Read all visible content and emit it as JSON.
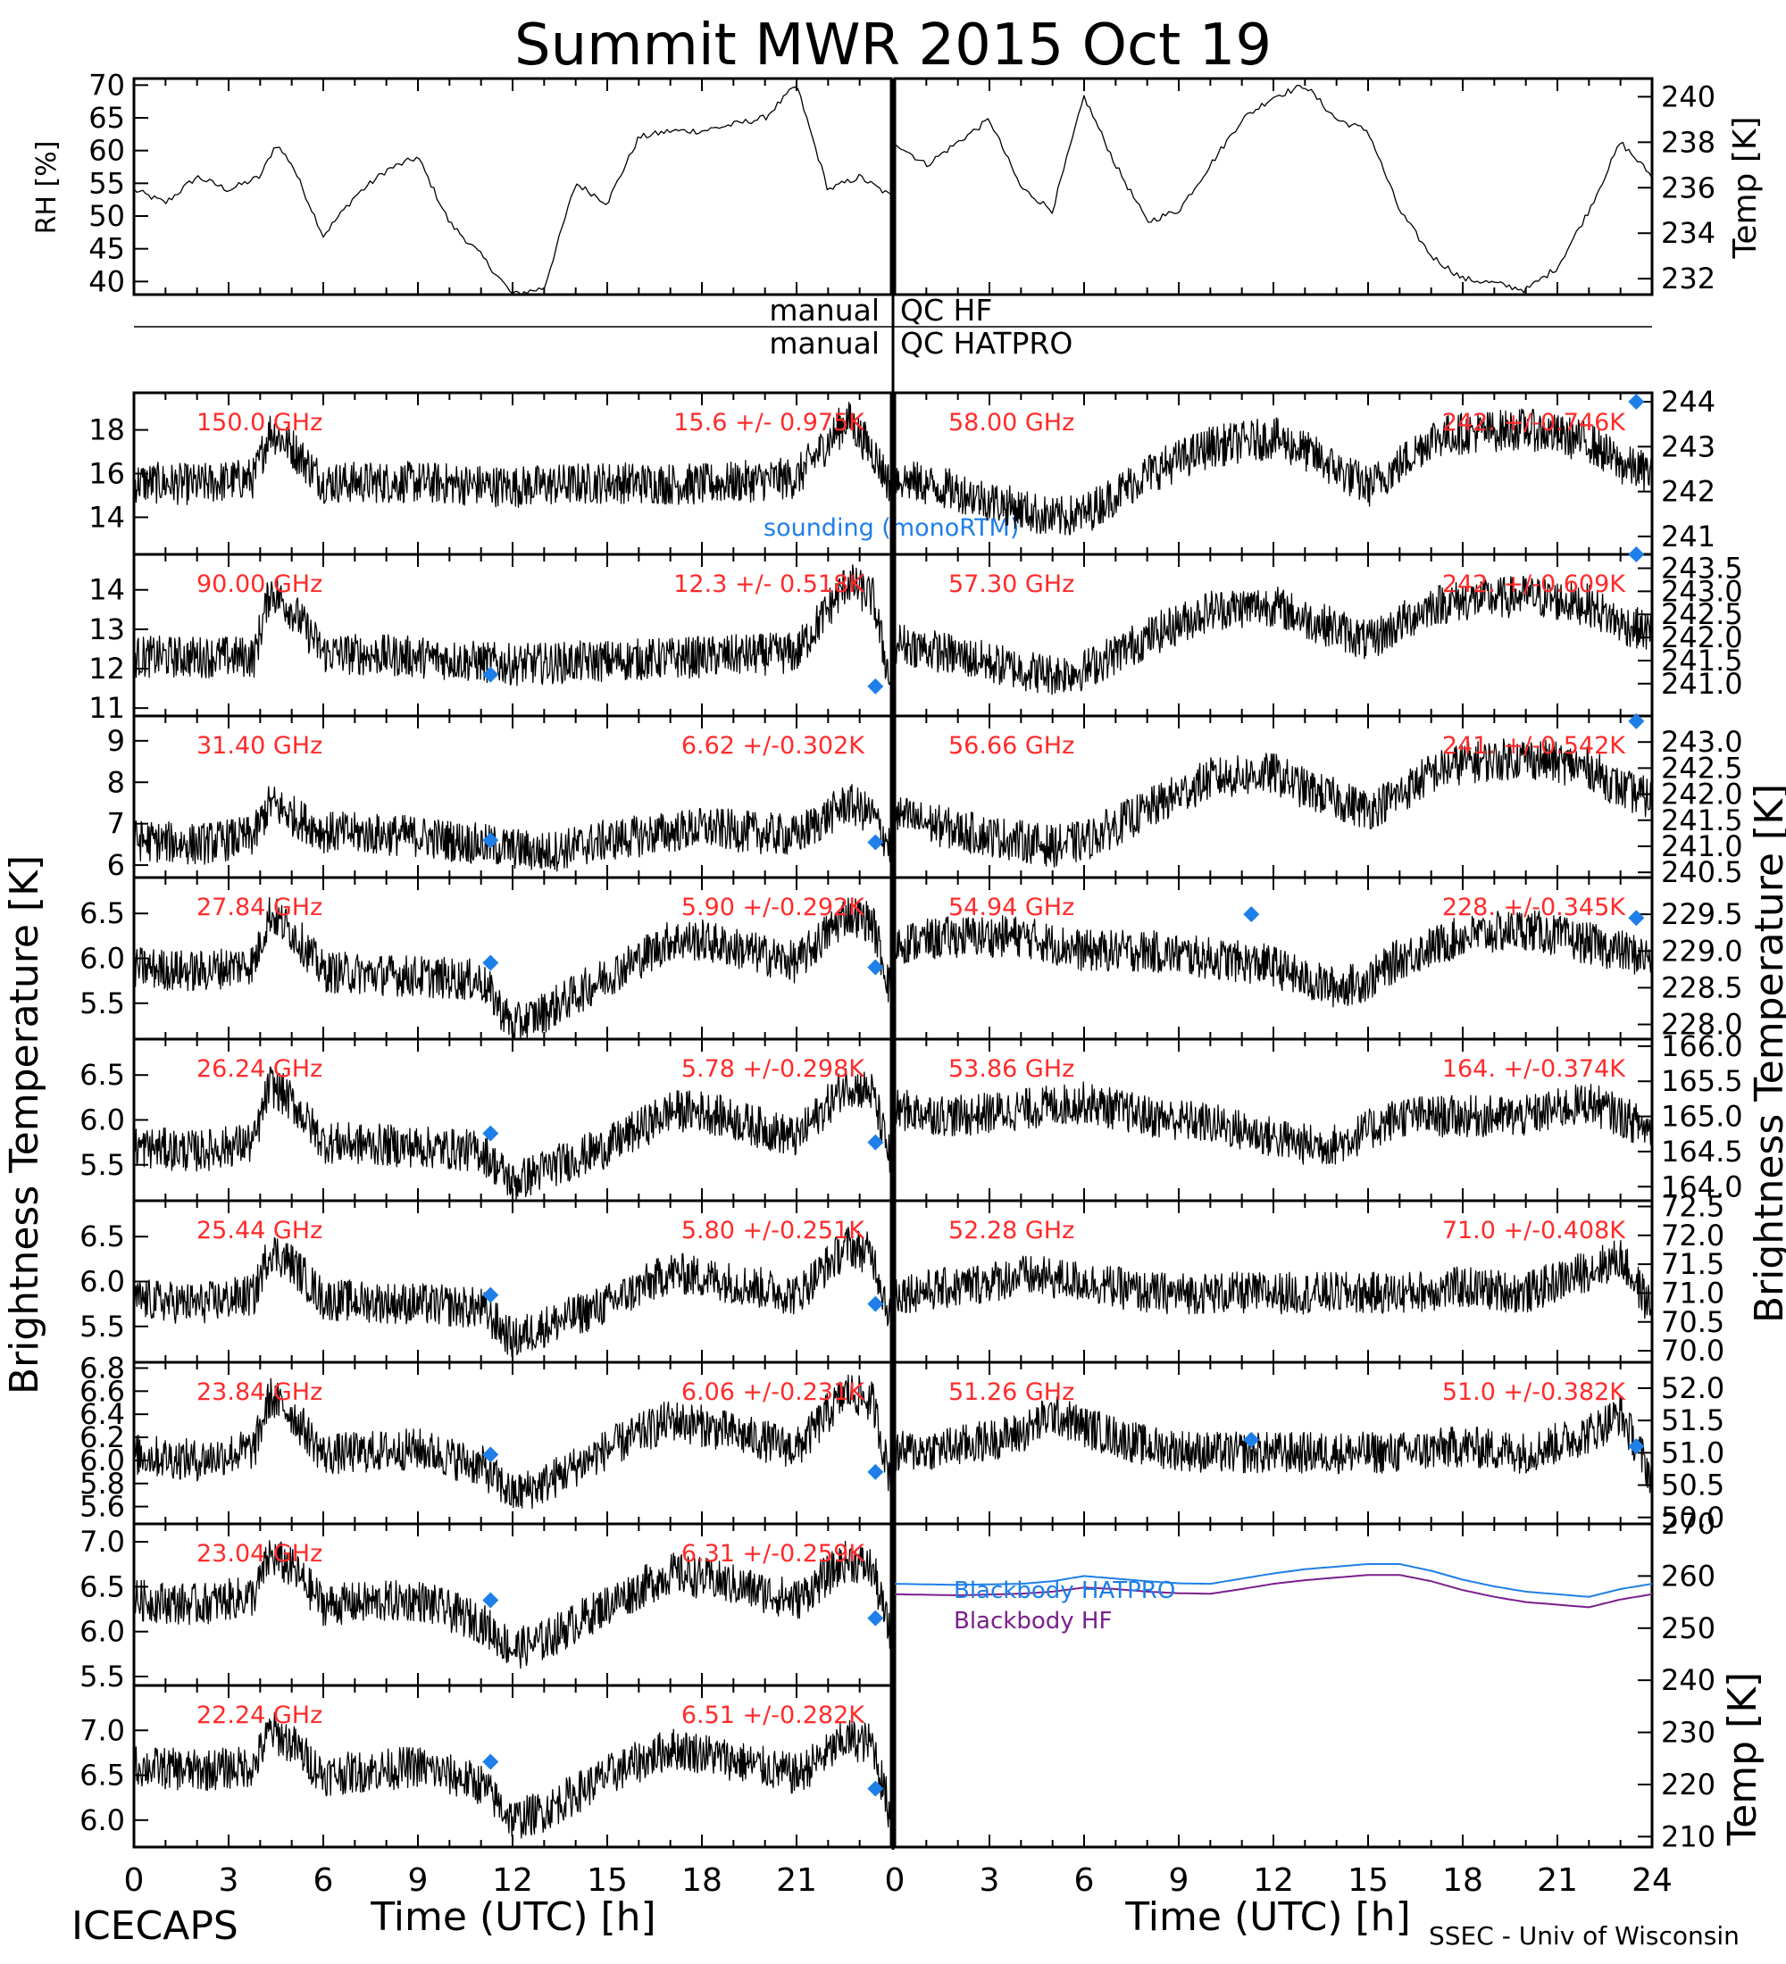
{
  "title": "Summit MWR 2015 Oct 19",
  "footer": {
    "left": "ICECAPS",
    "right": "SSEC - Univ of Wisconsin"
  },
  "colors": {
    "channel_label": "#ff2b2b",
    "sounding": "#1e7fe8",
    "bb_hatpro": "#1e7fe8",
    "bb_hf": "#7a1f8c",
    "trace": "#000000"
  },
  "qc": {
    "left_label": "manual",
    "hf_label": "QC HF",
    "hatpro_label": "QC HATPRO"
  },
  "axes": {
    "x_label": "Time (UTC) [h]",
    "x_ticks": [
      "0",
      "3",
      "6",
      "9",
      "12",
      "15",
      "18",
      "21",
      "0",
      "3",
      "6",
      "9",
      "12",
      "15",
      "18",
      "21",
      "24"
    ],
    "left_big_label": "Brightness Temperature [K]",
    "right_big_label": "Brightness Temperature [K]",
    "rh_label": "RH [%]",
    "temp_label": "Temp [K]"
  },
  "sounding_label": "sounding (monoRTM)",
  "chart_data": [
    {
      "type": "line",
      "panel": "rh",
      "ylabel": "RH [%]",
      "ylim": [
        38,
        71
      ],
      "yticks": [
        40,
        45,
        50,
        55,
        60,
        65,
        70
      ],
      "x": [
        0,
        1,
        2,
        3,
        4,
        4.5,
        5,
        6,
        7,
        8,
        9,
        10,
        11,
        12,
        13,
        14,
        15,
        16,
        17,
        18,
        19,
        20,
        21,
        22,
        23,
        24
      ],
      "values": [
        54,
        52,
        56,
        54,
        56,
        61,
        58,
        47,
        53,
        57,
        59,
        49,
        44,
        38,
        39,
        55,
        52,
        62,
        63,
        63,
        64,
        65,
        70,
        54,
        56,
        53
      ]
    },
    {
      "type": "line",
      "panel": "temp",
      "ylabel": "Temp [K]",
      "ylim": [
        231.3,
        240.8
      ],
      "yticks": [
        232,
        234,
        236,
        238,
        240
      ],
      "x": [
        0,
        1,
        2,
        3,
        4,
        5,
        6,
        7,
        8,
        9,
        10,
        11,
        12,
        13,
        14,
        15,
        16,
        17,
        18,
        19,
        20,
        21,
        22,
        23,
        24
      ],
      "values": [
        238,
        237,
        238,
        239,
        236,
        235,
        240,
        237,
        234.5,
        235,
        237,
        239,
        240,
        240.5,
        239,
        238.5,
        235,
        233,
        232,
        231.8,
        231.5,
        232.5,
        235,
        238,
        236.5
      ]
    },
    {
      "type": "scatter",
      "panel": "left",
      "freq": "150.0 GHz",
      "stat": "15.6 +/- 0.975K",
      "ylim": [
        12.3,
        19.7
      ],
      "yticks": [
        "14",
        "16",
        "18"
      ],
      "ytick_values": [
        14,
        16,
        18
      ],
      "x": [
        0,
        2,
        3.8,
        4.3,
        5,
        6,
        9,
        12,
        15,
        18,
        21,
        22.6,
        23.4,
        24
      ],
      "values": [
        15.6,
        15.5,
        15.8,
        18,
        17.2,
        15.6,
        15.6,
        15.4,
        15.6,
        15.5,
        15.8,
        18.5,
        17,
        15.4
      ]
    },
    {
      "type": "scatter",
      "panel": "left",
      "freq": "90.00 GHz",
      "stat": "12.3 +/- 0.518K",
      "ylim": [
        10.8,
        14.9
      ],
      "yticks": [
        "11",
        "12",
        "13",
        "14"
      ],
      "ytick_values": [
        11,
        12,
        13,
        14
      ],
      "x": [
        0,
        2,
        3.8,
        4.3,
        5,
        6,
        9,
        12,
        15,
        18,
        21,
        22.6,
        23.4,
        24
      ],
      "values": [
        12.3,
        12.3,
        12.3,
        14,
        13.5,
        12.4,
        12.3,
        12.1,
        12.2,
        12.3,
        12.4,
        14.2,
        13.8,
        11.5
      ],
      "sounding": [
        [
          11.3,
          11.85
        ],
        [
          23.5,
          11.55
        ]
      ]
    },
    {
      "type": "scatter",
      "panel": "left",
      "freq": "31.40 GHz",
      "stat": "6.62 +/-0.302K",
      "ylim": [
        5.7,
        9.6
      ],
      "yticks": [
        "6",
        "7",
        "8",
        "9"
      ],
      "ytick_values": [
        6,
        7,
        8,
        9
      ],
      "x": [
        0,
        2,
        3.8,
        4.3,
        5,
        6,
        9,
        12,
        13,
        15,
        18,
        21,
        22.6,
        23.4,
        24
      ],
      "values": [
        6.6,
        6.5,
        6.7,
        7.5,
        7.2,
        6.8,
        6.7,
        6.4,
        6.3,
        6.6,
        6.9,
        6.7,
        7.5,
        7.2,
        6.4
      ],
      "sounding": [
        [
          11.3,
          6.6
        ],
        [
          23.5,
          6.55
        ]
      ]
    },
    {
      "type": "scatter",
      "panel": "left",
      "freq": "27.84 GHz",
      "stat": "5.90 +/-0.292K",
      "ylim": [
        5.1,
        6.9
      ],
      "yticks": [
        "5.5",
        "6.0",
        "6.5"
      ],
      "ytick_values": [
        5.5,
        6.0,
        6.5
      ],
      "x": [
        0,
        2,
        3.8,
        4.3,
        5,
        6,
        9,
        11,
        12,
        13,
        15,
        17,
        18,
        21,
        22.6,
        23.4,
        24
      ],
      "values": [
        5.9,
        5.85,
        5.95,
        6.5,
        6.3,
        5.85,
        5.8,
        5.75,
        5.25,
        5.4,
        5.8,
        6.2,
        6.2,
        5.95,
        6.5,
        6.4,
        5.6
      ],
      "sounding": [
        [
          11.3,
          5.95
        ],
        [
          23.5,
          5.9
        ]
      ]
    },
    {
      "type": "scatter",
      "panel": "left",
      "freq": "26.24 GHz",
      "stat": "5.78 +/-0.298K",
      "ylim": [
        5.1,
        6.9
      ],
      "yticks": [
        "5.5",
        "6.0",
        "6.5"
      ],
      "ytick_values": [
        5.5,
        6.0,
        6.5
      ],
      "x": [
        0,
        2,
        3.8,
        4.3,
        5,
        6,
        9,
        11,
        12,
        13,
        15,
        17,
        18,
        21,
        22.6,
        23.4,
        24
      ],
      "values": [
        5.7,
        5.65,
        5.75,
        6.4,
        6.2,
        5.75,
        5.7,
        5.65,
        5.3,
        5.45,
        5.7,
        6.1,
        6.1,
        5.8,
        6.4,
        6.3,
        5.5
      ],
      "sounding": [
        [
          11.3,
          5.85
        ],
        [
          23.5,
          5.75
        ]
      ]
    },
    {
      "type": "scatter",
      "panel": "left",
      "freq": "25.44 GHz",
      "stat": "5.80 +/-0.251K",
      "ylim": [
        5.1,
        6.9
      ],
      "yticks": [
        "5.5",
        "6.0",
        "6.5"
      ],
      "ytick_values": [
        5.5,
        6.0,
        6.5
      ],
      "x": [
        0,
        2,
        3.8,
        4.3,
        5,
        6,
        9,
        11,
        12,
        13,
        15,
        17,
        18,
        21,
        22.6,
        23.4,
        24
      ],
      "values": [
        5.8,
        5.75,
        5.85,
        6.35,
        6.2,
        5.8,
        5.75,
        5.7,
        5.35,
        5.5,
        5.75,
        6.1,
        6.05,
        5.85,
        6.4,
        6.3,
        5.55
      ],
      "sounding": [
        [
          11.3,
          5.85
        ],
        [
          23.5,
          5.75
        ]
      ]
    },
    {
      "type": "scatter",
      "panel": "left",
      "freq": "23.84 GHz",
      "stat": "6.06 +/-0.231K",
      "ylim": [
        5.45,
        6.85
      ],
      "yticks": [
        "5.6",
        "5.8",
        "6.0",
        "6.2",
        "6.4",
        "6.6",
        "6.8"
      ],
      "ytick_values": [
        5.6,
        5.8,
        6.0,
        6.2,
        6.4,
        6.6,
        6.8
      ],
      "x": [
        0,
        2,
        3.8,
        4.3,
        5,
        6,
        9,
        11,
        12,
        13,
        15,
        17,
        18,
        21,
        22.6,
        23.4,
        24
      ],
      "values": [
        6.05,
        6.0,
        6.1,
        6.55,
        6.4,
        6.05,
        6.1,
        5.95,
        5.7,
        5.8,
        6.1,
        6.35,
        6.3,
        6.1,
        6.6,
        6.5,
        5.8
      ],
      "sounding": [
        [
          11.3,
          6.05
        ],
        [
          23.5,
          5.9
        ]
      ]
    },
    {
      "type": "scatter",
      "panel": "left",
      "freq": "23.04 GHz",
      "stat": "6.31 +/-0.259K",
      "ylim": [
        5.4,
        7.2
      ],
      "yticks": [
        "5.5",
        "6.0",
        "6.5",
        "7.0"
      ],
      "ytick_values": [
        5.5,
        6.0,
        6.5,
        7.0
      ],
      "x": [
        0,
        2,
        3.8,
        4.3,
        5,
        6,
        9,
        11,
        12,
        13,
        15,
        17,
        18,
        21,
        22.6,
        23.4,
        24
      ],
      "values": [
        6.35,
        6.3,
        6.4,
        6.85,
        6.7,
        6.3,
        6.35,
        6.1,
        5.8,
        5.9,
        6.3,
        6.65,
        6.6,
        6.35,
        6.8,
        6.7,
        5.9
      ],
      "sounding": [
        [
          11.3,
          6.35
        ],
        [
          23.5,
          6.15
        ]
      ]
    },
    {
      "type": "scatter",
      "panel": "left",
      "freq": "22.24 GHz",
      "stat": "6.51 +/-0.282K",
      "ylim": [
        5.7,
        7.5
      ],
      "yticks": [
        "6.0",
        "6.5",
        "7.0"
      ],
      "ytick_values": [
        6.0,
        6.5,
        7.0
      ],
      "x": [
        0,
        2,
        3.8,
        4.3,
        5,
        6,
        9,
        11,
        12,
        13,
        15,
        17,
        18,
        21,
        22.6,
        23.4,
        24
      ],
      "values": [
        6.6,
        6.55,
        6.6,
        7.0,
        6.85,
        6.5,
        6.6,
        6.4,
        6.0,
        6.1,
        6.5,
        6.8,
        6.75,
        6.5,
        6.9,
        6.85,
        6.0
      ],
      "sounding": [
        [
          11.3,
          6.65
        ],
        [
          23.5,
          6.35
        ]
      ]
    },
    {
      "type": "scatter",
      "panel": "right",
      "freq": "58.00 GHz",
      "stat": "242. +/-0.746K",
      "ylim": [
        240.6,
        244.2
      ],
      "yticks": [
        "241",
        "242",
        "243",
        "244"
      ],
      "ytick_values": [
        241,
        242,
        243,
        244
      ],
      "x": [
        0,
        2,
        4,
        5,
        6,
        8,
        10,
        12,
        13,
        14,
        15,
        16,
        17,
        18,
        20,
        22,
        23,
        24
      ],
      "values": [
        242.3,
        242,
        241.6,
        241.4,
        241.5,
        242.4,
        243,
        243.2,
        242.9,
        242.5,
        242.1,
        242.6,
        243.2,
        243.3,
        243.4,
        243.1,
        242.6,
        242.4
      ],
      "sounding": [
        [
          23.5,
          244
        ]
      ]
    },
    {
      "type": "scatter",
      "panel": "right",
      "freq": "57.30 GHz",
      "stat": "242. +/-0.609K",
      "ylim": [
        240.3,
        243.8
      ],
      "yticks": [
        "241.0",
        "241.5",
        "242.0",
        "242.5",
        "243.0",
        "243.5"
      ],
      "ytick_values": [
        241.0,
        241.5,
        242.0,
        242.5,
        243.0,
        243.5
      ],
      "x": [
        0,
        2,
        4,
        5,
        6,
        8,
        10,
        12,
        13,
        14,
        15,
        16,
        17,
        18,
        20,
        22,
        23,
        24
      ],
      "values": [
        241.9,
        241.6,
        241.3,
        241.2,
        241.3,
        242,
        242.6,
        242.7,
        242.4,
        242.2,
        241.9,
        242.3,
        242.7,
        242.8,
        242.9,
        242.7,
        242.3,
        242.1
      ],
      "sounding": [
        [
          23.5,
          243.8
        ]
      ]
    },
    {
      "type": "scatter",
      "panel": "right",
      "freq": "56.66 GHz",
      "stat": "241. +/-0.542K",
      "ylim": [
        240.4,
        243.5
      ],
      "yticks": [
        "240.5",
        "241.0",
        "241.5",
        "242.0",
        "242.5",
        "243.0"
      ],
      "ytick_values": [
        240.5,
        241.0,
        241.5,
        242.0,
        242.5,
        243.0
      ],
      "x": [
        0,
        2,
        4,
        5,
        6,
        8,
        10,
        12,
        13,
        14,
        15,
        16,
        17,
        18,
        20,
        22,
        23,
        24
      ],
      "values": [
        241.6,
        241.3,
        241.1,
        241,
        241.1,
        241.7,
        242.3,
        242.4,
        242.1,
        241.9,
        241.7,
        242,
        242.4,
        242.6,
        242.7,
        242.5,
        242.1,
        241.9
      ],
      "sounding": [
        [
          23.5,
          243.4
        ]
      ]
    },
    {
      "type": "scatter",
      "panel": "right",
      "freq": "54.94 GHz",
      "stat": "228. +/-0.345K",
      "ylim": [
        227.8,
        230.0
      ],
      "yticks": [
        "228.0",
        "228.5",
        "229.0",
        "229.5"
      ],
      "ytick_values": [
        228.0,
        228.5,
        229.0,
        229.5
      ],
      "x": [
        0,
        2,
        4,
        6,
        8,
        10,
        12,
        13,
        14,
        15,
        16,
        18,
        20,
        22,
        24
      ],
      "values": [
        229.1,
        229.2,
        229.2,
        229.0,
        229.0,
        228.9,
        228.8,
        228.6,
        228.5,
        228.6,
        228.9,
        229.2,
        229.3,
        229.1,
        228.9
      ],
      "sounding": [
        [
          11.3,
          229.5
        ],
        [
          23.5,
          229.45
        ]
      ]
    },
    {
      "type": "scatter",
      "panel": "right",
      "freq": "53.86 GHz",
      "stat": "164. +/-0.374K",
      "ylim": [
        163.8,
        166.1
      ],
      "yticks": [
        "164.0",
        "164.5",
        "165.0",
        "165.5",
        "166.0"
      ],
      "ytick_values": [
        164.0,
        164.5,
        165.0,
        165.5,
        166.0
      ],
      "x": [
        0,
        2,
        4,
        6,
        8,
        10,
        12,
        13,
        14,
        15,
        16,
        18,
        20,
        22,
        24
      ],
      "values": [
        165.1,
        165.0,
        165.1,
        165.2,
        165.0,
        164.9,
        164.7,
        164.6,
        164.6,
        164.8,
        165.0,
        165.0,
        165.0,
        165.2,
        164.8
      ]
    },
    {
      "type": "scatter",
      "panel": "right",
      "freq": "52.28 GHz",
      "stat": "71.0 +/-0.408K",
      "ylim": [
        69.8,
        72.6
      ],
      "yticks": [
        "70.0",
        "70.5",
        "71.0",
        "71.5",
        "72.0",
        "72.5"
      ],
      "ytick_values": [
        70.0,
        70.5,
        71.0,
        71.5,
        72.0,
        72.5
      ],
      "x": [
        0,
        2,
        4,
        6,
        8,
        10,
        12,
        14,
        16,
        18,
        20,
        22,
        23,
        24
      ],
      "values": [
        71.0,
        71.1,
        71.3,
        71.2,
        71.0,
        71.0,
        71.0,
        71.0,
        71.0,
        71.1,
        71.0,
        71.4,
        71.6,
        70.7
      ]
    },
    {
      "type": "scatter",
      "panel": "right",
      "freq": "51.26 GHz",
      "stat": "51.0 +/-0.382K",
      "ylim": [
        49.9,
        52.4
      ],
      "yticks": [
        "50.0",
        "50.5",
        "51.0",
        "51.5",
        "52.0"
      ],
      "ytick_values": [
        50.0,
        50.5,
        51.0,
        51.5,
        52.0
      ],
      "x": [
        0,
        2,
        4,
        5,
        6,
        8,
        10,
        12,
        14,
        16,
        18,
        20,
        22,
        23,
        24
      ],
      "values": [
        51.0,
        51.1,
        51.3,
        51.6,
        51.4,
        51.1,
        51.0,
        51.0,
        51.0,
        51.0,
        51.1,
        51.0,
        51.3,
        51.6,
        50.6
      ],
      "sounding": [
        [
          11.3,
          51.2
        ],
        [
          23.5,
          51.1
        ]
      ]
    },
    {
      "type": "line",
      "panel": "blackbody",
      "ylabel": "Temp [K]",
      "ylim": [
        208,
        270
      ],
      "yticks": [
        "210",
        "220",
        "230",
        "240",
        "250",
        "260",
        "270"
      ],
      "ytick_values": [
        210,
        220,
        230,
        240,
        250,
        260,
        270
      ],
      "x": [
        0,
        2,
        4,
        5,
        6,
        7,
        8,
        9,
        10,
        11,
        12,
        13,
        14,
        15,
        16,
        17,
        18,
        19,
        20,
        21,
        22,
        23,
        24
      ],
      "series": [
        {
          "name": "Blackbody HATPRO",
          "values": [
            258.5,
            258.3,
            258.5,
            259,
            260,
            259.5,
            259,
            258.6,
            258.5,
            259.5,
            260.5,
            261.3,
            261.8,
            262.3,
            262.3,
            261,
            259.3,
            258,
            257,
            256.5,
            256,
            257.5,
            258.5
          ]
        },
        {
          "name": "Blackbody HF",
          "values": [
            256.5,
            256.3,
            256.6,
            257,
            257.8,
            257.5,
            257,
            256.7,
            256.6,
            257.5,
            258.5,
            259.2,
            259.7,
            260.2,
            260.2,
            259,
            257.3,
            256,
            255,
            254.5,
            254,
            255.5,
            256.5
          ]
        }
      ]
    }
  ]
}
